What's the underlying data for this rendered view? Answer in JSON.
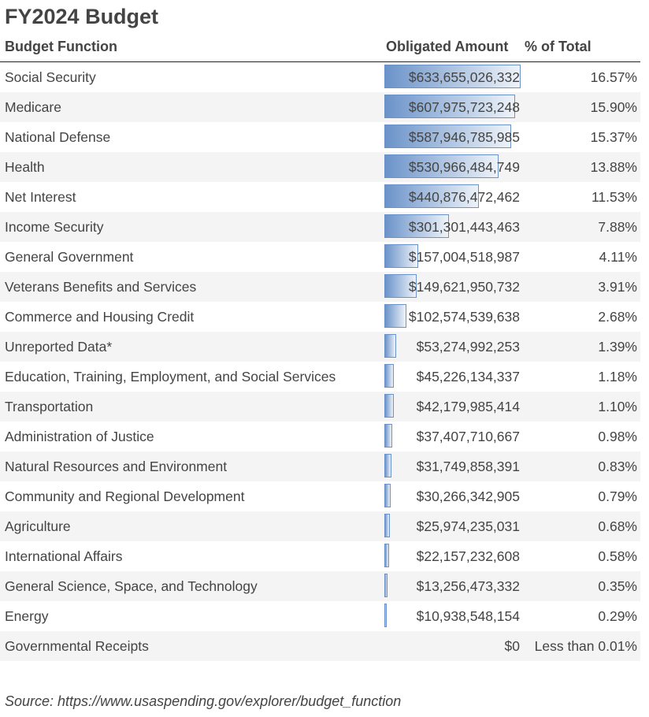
{
  "title": "FY2024 Budget",
  "chart_data": {
    "type": "table",
    "columns": [
      "Budget Function",
      "Obligated Amount",
      "% of Total"
    ],
    "rows": [
      {
        "name": "Social Security",
        "value": 633655026332,
        "amount": "$633,655,026,332",
        "pct": "16.57%"
      },
      {
        "name": "Medicare",
        "value": 607975723248,
        "amount": "$607,975,723,248",
        "pct": "15.90%"
      },
      {
        "name": "National Defense",
        "value": 587946785985,
        "amount": "$587,946,785,985",
        "pct": "15.37%"
      },
      {
        "name": "Health",
        "value": 530966484749,
        "amount": "$530,966,484,749",
        "pct": "13.88%"
      },
      {
        "name": "Net Interest",
        "value": 440876472462,
        "amount": "$440,876,472,462",
        "pct": "11.53%"
      },
      {
        "name": "Income Security",
        "value": 301301443463,
        "amount": "$301,301,443,463",
        "pct": "7.88%"
      },
      {
        "name": "General Government",
        "value": 157004518987,
        "amount": "$157,004,518,987",
        "pct": "4.11%"
      },
      {
        "name": "Veterans Benefits and Services",
        "value": 149621950732,
        "amount": "$149,621,950,732",
        "pct": "3.91%"
      },
      {
        "name": "Commerce and Housing Credit",
        "value": 102574539638,
        "amount": "$102,574,539,638",
        "pct": "2.68%"
      },
      {
        "name": "Unreported Data*",
        "value": 53274992253,
        "amount": "$53,274,992,253",
        "pct": "1.39%"
      },
      {
        "name": "Education, Training, Employment, and Social Services",
        "value": 45226134337,
        "amount": "$45,226,134,337",
        "pct": "1.18%"
      },
      {
        "name": "Transportation",
        "value": 42179985414,
        "amount": "$42,179,985,414",
        "pct": "1.10%"
      },
      {
        "name": "Administration of Justice",
        "value": 37407710667,
        "amount": "$37,407,710,667",
        "pct": "0.98%"
      },
      {
        "name": "Natural Resources and Environment",
        "value": 31749858391,
        "amount": "$31,749,858,391",
        "pct": "0.83%"
      },
      {
        "name": "Community and Regional Development",
        "value": 30266342905,
        "amount": "$30,266,342,905",
        "pct": "0.79%"
      },
      {
        "name": "Agriculture",
        "value": 25974235031,
        "amount": "$25,974,235,031",
        "pct": "0.68%"
      },
      {
        "name": "International Affairs",
        "value": 22157232608,
        "amount": "$22,157,232,608",
        "pct": "0.58%"
      },
      {
        "name": "General Science, Space, and Technology",
        "value": 13256473332,
        "amount": "$13,256,473,332",
        "pct": "0.35%"
      },
      {
        "name": "Energy",
        "value": 10938548154,
        "amount": "$10,938,548,154",
        "pct": "0.29%"
      },
      {
        "name": "Governmental Receipts",
        "value": 0,
        "amount": "$0",
        "pct": "Less than 0.01%"
      }
    ],
    "bar_color": "#6b93c9"
  },
  "source": "Source: https://www.usaspending.gov/explorer/budget_function"
}
